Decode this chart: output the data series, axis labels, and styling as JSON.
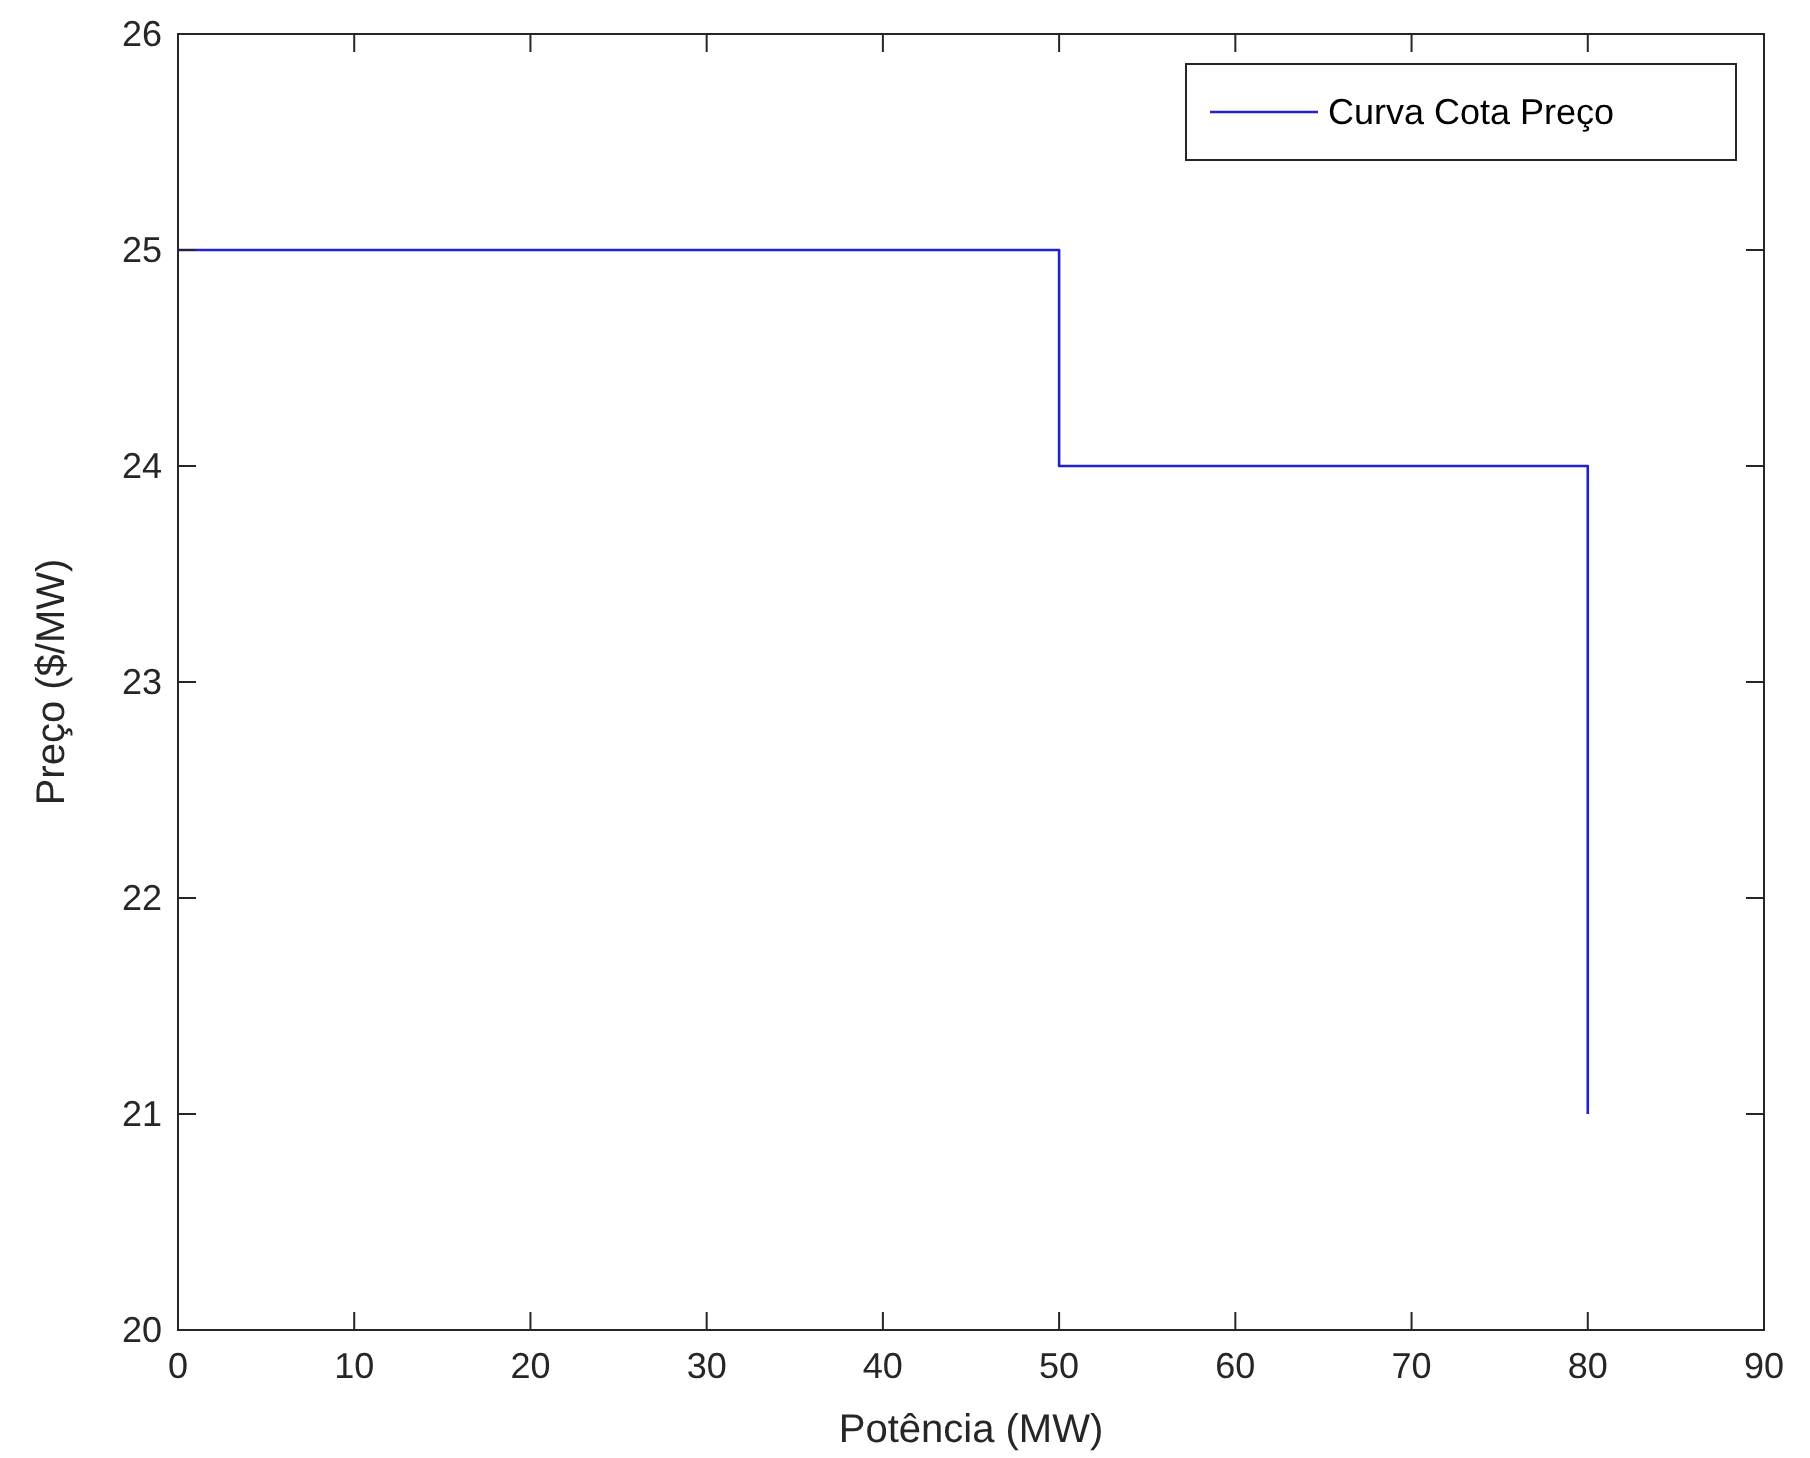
{
  "chart_data": {
    "type": "line",
    "xlabel": "Potência (MW)",
    "ylabel": "Preço ($/MW)",
    "xlim": [
      0,
      90
    ],
    "ylim": [
      20,
      26
    ],
    "xticks": [
      0,
      10,
      20,
      30,
      40,
      50,
      60,
      70,
      80,
      90
    ],
    "yticks": [
      20,
      21,
      22,
      23,
      24,
      25,
      26
    ],
    "legend": "top right",
    "series": [
      {
        "name": "Curva Cota Preço",
        "color": "#2222cc",
        "x": [
          0,
          50,
          50,
          80,
          80
        ],
        "values": [
          25,
          25,
          24,
          24,
          21
        ]
      }
    ]
  }
}
